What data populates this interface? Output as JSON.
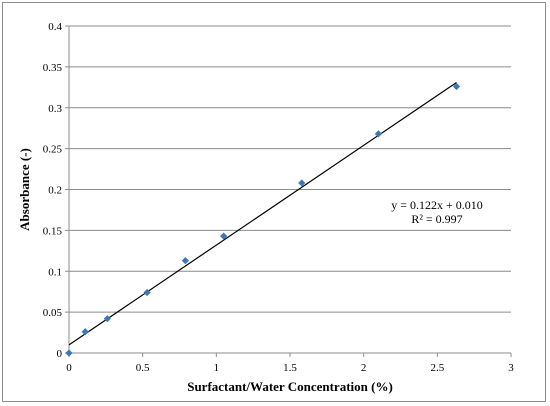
{
  "chart_data": {
    "type": "scatter",
    "xlabel": "Surfactant/Water Concentration (%)",
    "ylabel": "Absorbance (-)",
    "xlim": [
      0,
      3
    ],
    "ylim": [
      0,
      0.4
    ],
    "xticks": [
      "0",
      "0.5",
      "1",
      "1.5",
      "2",
      "2.5",
      "3"
    ],
    "yticks": [
      "0",
      "0.05",
      "0.1",
      "0.15",
      "0.2",
      "0.25",
      "0.3",
      "0.35",
      "0.4"
    ],
    "grid": "horizontal",
    "series": [
      {
        "marker_color": "#3a78b8",
        "x": [
          0,
          0.11,
          0.26,
          0.53,
          0.79,
          1.05,
          1.58,
          2.1,
          2.63
        ],
        "y": [
          0.0,
          0.026,
          0.042,
          0.074,
          0.113,
          0.143,
          0.208,
          0.268,
          0.326
        ]
      }
    ],
    "trendline": {
      "slope": 0.122,
      "intercept": 0.01,
      "x_range": [
        0,
        2.63
      ]
    },
    "annotations": [
      "y = 0.122x + 0.010",
      "R² = 0.997"
    ]
  }
}
